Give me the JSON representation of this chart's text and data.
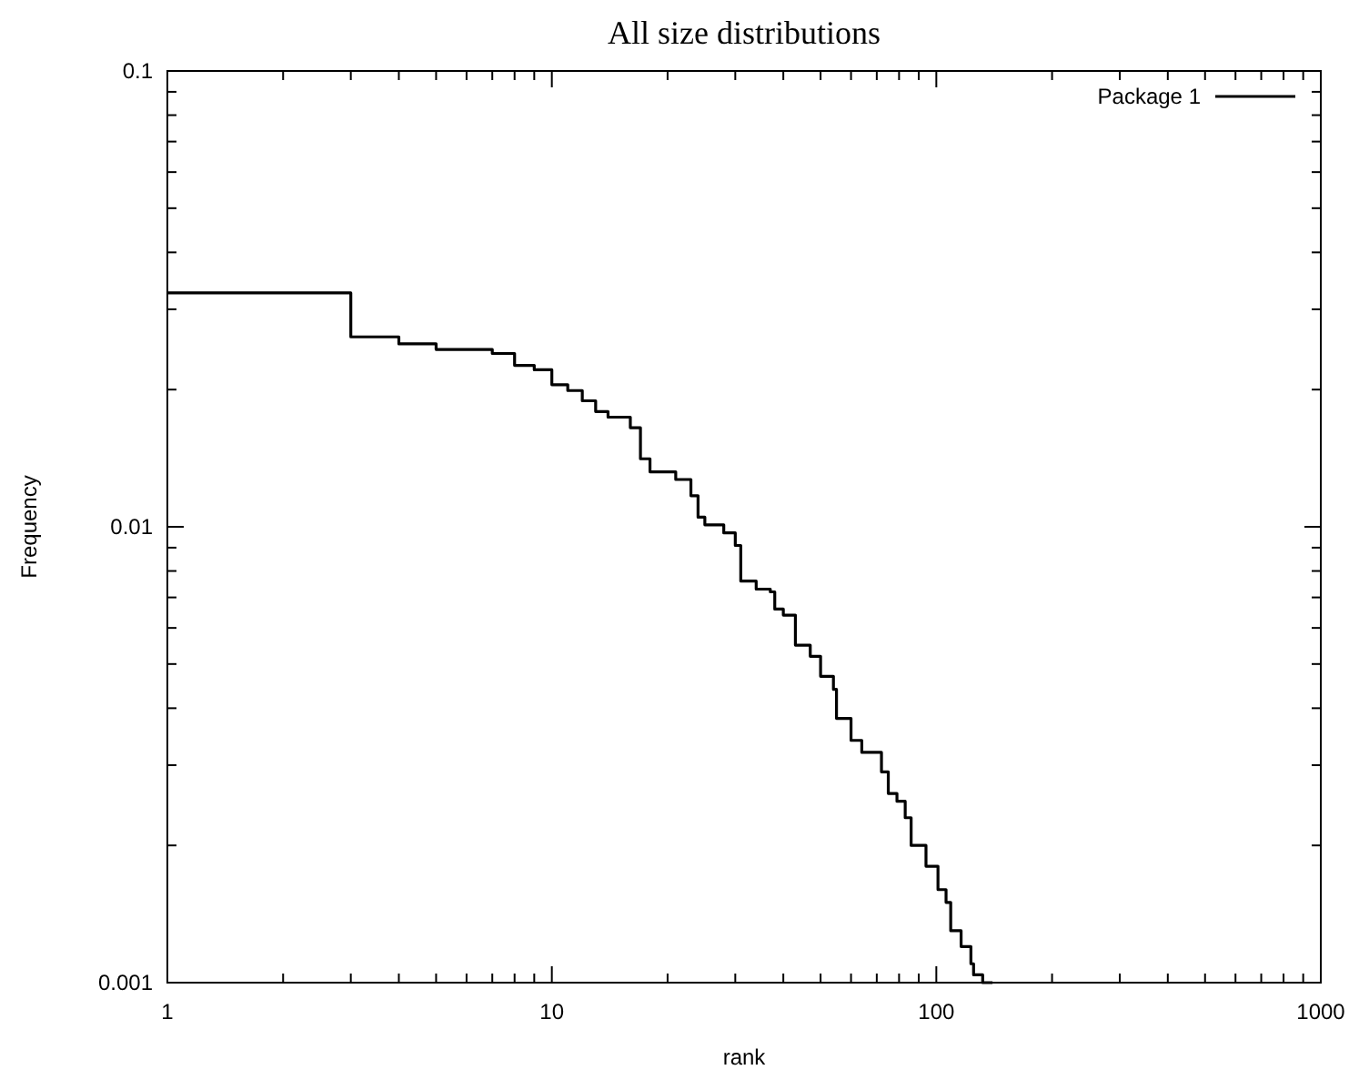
{
  "chart_data": {
    "type": "step",
    "title": "All size distributions",
    "xlabel": "rank",
    "ylabel": "Frequency",
    "log": "xy",
    "xlim": [
      1,
      1000
    ],
    "ylim": [
      0.001,
      0.1
    ],
    "xticks": [
      1,
      {
        "value": 2,
        "label": null
      },
      {
        "value": 3,
        "label": null
      },
      {
        "value": 4,
        "label": null
      },
      {
        "value": 5,
        "label": null
      },
      {
        "value": 6,
        "label": null
      },
      {
        "value": 7,
        "label": null
      },
      {
        "value": 8,
        "label": null
      },
      {
        "value": 9,
        "label": null
      },
      10,
      {
        "value": 20,
        "label": null
      },
      {
        "value": 30,
        "label": null
      },
      {
        "value": 40,
        "label": null
      },
      {
        "value": 50,
        "label": null
      },
      {
        "value": 60,
        "label": null
      },
      {
        "value": 70,
        "label": null
      },
      {
        "value": 80,
        "label": null
      },
      {
        "value": 90,
        "label": null
      },
      100,
      {
        "value": 200,
        "label": null
      },
      {
        "value": 300,
        "label": null
      },
      {
        "value": 400,
        "label": null
      },
      {
        "value": 500,
        "label": null
      },
      {
        "value": 600,
        "label": null
      },
      {
        "value": 700,
        "label": null
      },
      {
        "value": 800,
        "label": null
      },
      {
        "value": 900,
        "label": null
      },
      1000
    ],
    "yticks": [
      0.001,
      {
        "value": 0.002,
        "label": null
      },
      {
        "value": 0.003,
        "label": null
      },
      {
        "value": 0.004,
        "label": null
      },
      {
        "value": 0.005,
        "label": null
      },
      {
        "value": 0.006,
        "label": null
      },
      {
        "value": 0.007,
        "label": null
      },
      {
        "value": 0.008,
        "label": null
      },
      {
        "value": 0.009,
        "label": null
      },
      0.01,
      {
        "value": 0.02,
        "label": null
      },
      {
        "value": 0.03,
        "label": null
      },
      {
        "value": 0.04,
        "label": null
      },
      {
        "value": 0.05,
        "label": null
      },
      {
        "value": 0.06,
        "label": null
      },
      {
        "value": 0.07,
        "label": null
      },
      {
        "value": 0.08,
        "label": null
      },
      {
        "value": 0.09,
        "label": null
      },
      0.1
    ],
    "grid": false,
    "legend": "top right",
    "marker": "none",
    "line_style": "solid",
    "series": [
      {
        "name": "Package 1",
        "color": "#000000",
        "x": [
          1,
          3,
          4,
          5,
          7,
          8,
          9,
          10,
          11,
          12,
          13,
          14,
          16,
          17,
          18,
          21,
          23,
          24,
          25,
          28,
          30,
          31,
          34,
          37,
          38,
          40,
          43,
          47,
          50,
          54,
          55,
          60,
          64,
          72,
          75,
          79,
          83,
          86,
          94,
          101,
          106,
          109,
          116,
          123,
          125,
          132,
          140
        ],
        "values": [
          0.0326,
          0.0261,
          0.0252,
          0.0245,
          0.024,
          0.0226,
          0.0221,
          0.0205,
          0.0199,
          0.0189,
          0.0179,
          0.0174,
          0.0165,
          0.0141,
          0.0132,
          0.0127,
          0.0117,
          0.0105,
          0.0101,
          0.0097,
          0.0091,
          0.0076,
          0.0073,
          0.0072,
          0.0066,
          0.0064,
          0.0055,
          0.0052,
          0.0047,
          0.0044,
          0.0038,
          0.0034,
          0.0032,
          0.0029,
          0.0026,
          0.0025,
          0.0023,
          0.002,
          0.0018,
          0.0016,
          0.0015,
          0.0013,
          0.0012,
          0.0011,
          0.00104,
          0.001,
          0.001
        ]
      }
    ]
  }
}
